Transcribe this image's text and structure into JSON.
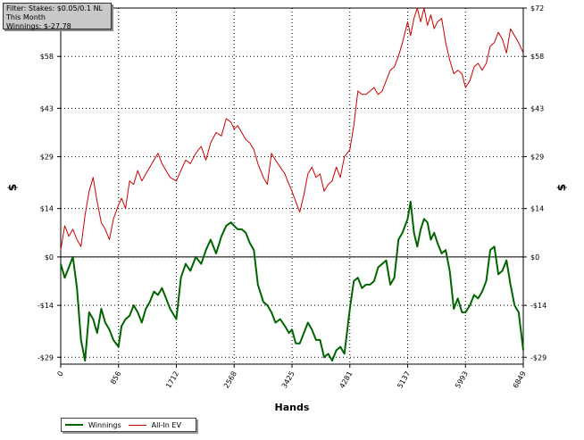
{
  "filter": {
    "stakes": "Filter: Stakes: $0.05/0.1 NL",
    "period": "This Month",
    "winnings": "Winnings: $-27.78"
  },
  "colors": {
    "winnings": "#006400",
    "allin_ev": "#cc0000",
    "zero_line": "#000000",
    "grid": "#000000"
  },
  "chart_data": {
    "type": "line",
    "title": "",
    "xlabel": "Hands",
    "ylabel": "$",
    "xlim": [
      0,
      6849
    ],
    "ylim": [
      -31,
      72
    ],
    "x_ticks": [
      0,
      856,
      1712,
      2568,
      3425,
      4281,
      5137,
      5993,
      6849
    ],
    "y_ticks": [
      72,
      58,
      43,
      29,
      14,
      0,
      -14,
      -29
    ],
    "y_tick_labels": [
      "$72",
      "$58",
      "$43",
      "$29",
      "$14",
      "$0",
      "-$14",
      "-$29"
    ],
    "grid": true,
    "legend_position": "bottom-left",
    "series": [
      {
        "name": "Winnings",
        "x": [
          0,
          60,
          120,
          180,
          240,
          300,
          360,
          420,
          480,
          540,
          600,
          660,
          720,
          780,
          856,
          900,
          960,
          1020,
          1080,
          1140,
          1200,
          1260,
          1320,
          1380,
          1440,
          1500,
          1560,
          1620,
          1712,
          1780,
          1850,
          1920,
          2000,
          2080,
          2150,
          2220,
          2300,
          2380,
          2450,
          2520,
          2568,
          2620,
          2680,
          2740,
          2800,
          2860,
          2920,
          3000,
          3060,
          3120,
          3180,
          3250,
          3320,
          3380,
          3425,
          3480,
          3540,
          3600,
          3660,
          3720,
          3780,
          3840,
          3900,
          3960,
          4020,
          4080,
          4140,
          4200,
          4281,
          4340,
          4400,
          4460,
          4520,
          4580,
          4640,
          4700,
          4760,
          4820,
          4880,
          4940,
          5000,
          5060,
          5137,
          5180,
          5230,
          5280,
          5330,
          5380,
          5430,
          5480,
          5530,
          5580,
          5640,
          5700,
          5760,
          5820,
          5880,
          5940,
          5993,
          6060,
          6120,
          6180,
          6240,
          6300,
          6360,
          6420,
          6480,
          6540,
          6600,
          6660,
          6720,
          6780,
          6849
        ],
        "y": [
          -2,
          -6,
          -3,
          0,
          -9,
          -24,
          -30,
          -16,
          -18,
          -22,
          -15,
          -19,
          -21,
          -24,
          -26,
          -20,
          -18,
          -17,
          -14,
          -16,
          -19,
          -15,
          -13,
          -10,
          -11,
          -9,
          -12,
          -15,
          -18,
          -6,
          -2,
          -4,
          0,
          -2,
          2,
          5,
          1,
          6,
          9,
          10,
          9,
          8,
          8,
          7,
          4,
          2,
          -8,
          -13,
          -14,
          -16,
          -19,
          -18,
          -20,
          -22,
          -21,
          -25,
          -25,
          -22,
          -19,
          -21,
          -24,
          -24,
          -29,
          -28,
          -30,
          -27,
          -26,
          -28,
          -15,
          -7,
          -6,
          -9,
          -8,
          -8,
          -7,
          -3,
          -2,
          -1,
          -8,
          -6,
          5,
          7,
          11,
          16,
          7,
          3,
          8,
          11,
          10,
          5,
          7,
          4,
          1,
          2,
          -4,
          -15,
          -12,
          -16,
          -16,
          -14,
          -11,
          -12,
          -10,
          -7,
          2,
          3,
          -5,
          -4,
          -1,
          -8,
          -14,
          -16,
          -27
        ]
      },
      {
        "name": "All-In EV",
        "x": [
          0,
          60,
          120,
          180,
          240,
          300,
          360,
          420,
          480,
          540,
          600,
          660,
          720,
          780,
          856,
          900,
          960,
          1020,
          1080,
          1140,
          1200,
          1260,
          1320,
          1380,
          1440,
          1500,
          1560,
          1620,
          1712,
          1780,
          1850,
          1920,
          2000,
          2080,
          2150,
          2220,
          2300,
          2380,
          2450,
          2520,
          2568,
          2620,
          2680,
          2740,
          2800,
          2860,
          2920,
          3000,
          3060,
          3120,
          3180,
          3250,
          3320,
          3380,
          3425,
          3480,
          3540,
          3600,
          3660,
          3720,
          3780,
          3840,
          3900,
          3960,
          4020,
          4080,
          4140,
          4200,
          4281,
          4340,
          4400,
          4460,
          4520,
          4580,
          4640,
          4700,
          4760,
          4820,
          4880,
          4940,
          5000,
          5060,
          5137,
          5180,
          5230,
          5280,
          5330,
          5380,
          5430,
          5480,
          5530,
          5580,
          5640,
          5700,
          5760,
          5820,
          5880,
          5940,
          5993,
          6060,
          6120,
          6180,
          6240,
          6300,
          6360,
          6420,
          6480,
          6540,
          6600,
          6660,
          6720,
          6780,
          6849
        ],
        "y": [
          2,
          9,
          6,
          8,
          5,
          3,
          12,
          19,
          23,
          16,
          10,
          8,
          5,
          11,
          15,
          17,
          14,
          22,
          21,
          25,
          22,
          24,
          26,
          28,
          30,
          27,
          25,
          23,
          22,
          25,
          28,
          27,
          30,
          32,
          28,
          33,
          36,
          35,
          40,
          39,
          37,
          38,
          36,
          34,
          33,
          31,
          27,
          23,
          21,
          30,
          28,
          26,
          24,
          21,
          19,
          16,
          13,
          18,
          24,
          26,
          23,
          24,
          19,
          21,
          22,
          26,
          23,
          29,
          31,
          38,
          48,
          47,
          47,
          48,
          49,
          47,
          48,
          51,
          54,
          55,
          58,
          62,
          68,
          64,
          69,
          72,
          68,
          72,
          67,
          70,
          66,
          68,
          69,
          62,
          57,
          53,
          54,
          53,
          49,
          51,
          55,
          56,
          54,
          56,
          61,
          62,
          65,
          63,
          59,
          66,
          64,
          62,
          59
        ]
      }
    ]
  }
}
